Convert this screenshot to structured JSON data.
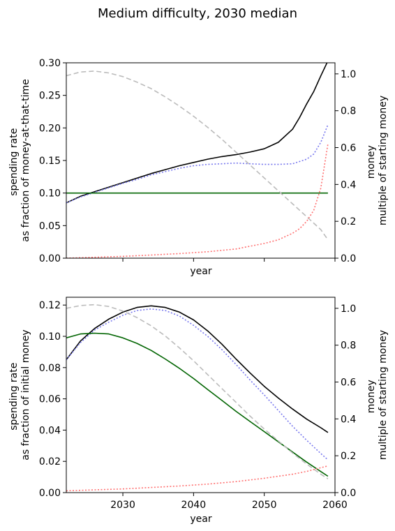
{
  "figure": {
    "suptitle": "Medium difficulty, 2030 median"
  },
  "chart_data": [
    {
      "type": "line",
      "panel": "top",
      "xlabel": "year",
      "ylabel": "spending rate\nas fraction of money-at-that-time",
      "y2label": "money\nmultiple of starting money",
      "xlim": [
        2022,
        2060
      ],
      "ylim": [
        0,
        0.3
      ],
      "y2lim": [
        0,
        1.06
      ],
      "x_ticks": [
        2030,
        2040,
        2050,
        2060
      ],
      "x_tick_labels_visible": false,
      "y_ticks": [
        "0.00",
        "0.05",
        "0.10",
        "0.15",
        "0.20",
        "0.25",
        "0.30"
      ],
      "y2_ticks": [
        "0.0",
        "0.2",
        "0.4",
        "0.6",
        "0.8",
        "1.0"
      ],
      "series": [
        {
          "axis": "left",
          "color": "#000000",
          "style": "solid",
          "width": 1.6,
          "x": [
            2022,
            2024,
            2026,
            2028,
            2030,
            2032,
            2034,
            2036,
            2038,
            2040,
            2042,
            2044,
            2046,
            2048,
            2050,
            2052,
            2054,
            2055,
            2056,
            2057,
            2058,
            2059
          ],
          "y": [
            0.085,
            0.095,
            0.102,
            0.109,
            0.116,
            0.123,
            0.13,
            0.136,
            0.142,
            0.147,
            0.152,
            0.156,
            0.159,
            0.163,
            0.168,
            0.178,
            0.198,
            0.216,
            0.237,
            0.256,
            0.28,
            0.303
          ]
        },
        {
          "axis": "left",
          "color": "#7777ee",
          "style": "dotted",
          "width": 1.6,
          "x": [
            2022,
            2024,
            2026,
            2028,
            2030,
            2032,
            2034,
            2036,
            2038,
            2040,
            2042,
            2044,
            2046,
            2048,
            2050,
            2052,
            2054,
            2056,
            2057,
            2058,
            2059
          ],
          "y": [
            0.085,
            0.094,
            0.101,
            0.108,
            0.115,
            0.121,
            0.128,
            0.133,
            0.138,
            0.142,
            0.144,
            0.145,
            0.146,
            0.145,
            0.144,
            0.144,
            0.145,
            0.152,
            0.16,
            0.178,
            0.205
          ]
        },
        {
          "axis": "left",
          "color": "#006400",
          "style": "solid",
          "width": 1.6,
          "x": [
            2022,
            2059
          ],
          "y": [
            0.1,
            0.1
          ]
        },
        {
          "axis": "right",
          "color": "#bbbbbb",
          "style": "dashed",
          "width": 1.6,
          "x": [
            2022,
            2024,
            2026,
            2028,
            2030,
            2032,
            2034,
            2036,
            2038,
            2040,
            2042,
            2044,
            2046,
            2048,
            2050,
            2052,
            2054,
            2056,
            2058,
            2059
          ],
          "y": [
            0.99,
            1.01,
            1.015,
            1.005,
            0.985,
            0.955,
            0.92,
            0.875,
            0.825,
            0.77,
            0.71,
            0.645,
            0.575,
            0.505,
            0.435,
            0.365,
            0.295,
            0.225,
            0.155,
            0.1
          ]
        },
        {
          "axis": "right",
          "color": "#ff7070",
          "style": "dotted",
          "width": 1.6,
          "x": [
            2022,
            2026,
            2030,
            2034,
            2038,
            2042,
            2046,
            2050,
            2052,
            2054,
            2055,
            2056,
            2057,
            2058,
            2059
          ],
          "y": [
            0.0,
            0.005,
            0.01,
            0.017,
            0.025,
            0.035,
            0.05,
            0.08,
            0.1,
            0.135,
            0.16,
            0.2,
            0.26,
            0.38,
            0.62
          ]
        }
      ]
    },
    {
      "type": "line",
      "panel": "bottom",
      "xlabel": "year",
      "ylabel": "spending rate\nas fraction of initial money",
      "y2label": "money\nmultiple of starting money",
      "xlim": [
        2022,
        2060
      ],
      "ylim": [
        0,
        0.125
      ],
      "y2lim": [
        0,
        1.06
      ],
      "x_ticks": [
        2030,
        2040,
        2050,
        2060
      ],
      "x_tick_labels": [
        "2030",
        "2040",
        "2050",
        "2060"
      ],
      "y_ticks": [
        "0.00",
        "0.02",
        "0.04",
        "0.06",
        "0.08",
        "0.10",
        "0.12"
      ],
      "y2_ticks": [
        "0.0",
        "0.2",
        "0.4",
        "0.6",
        "0.8",
        "1.0"
      ],
      "series": [
        {
          "axis": "left",
          "color": "#000000",
          "style": "solid",
          "width": 1.6,
          "x": [
            2022,
            2024,
            2026,
            2028,
            2030,
            2032,
            2034,
            2036,
            2038,
            2040,
            2042,
            2044,
            2046,
            2048,
            2050,
            2052,
            2054,
            2056,
            2058,
            2059
          ],
          "y": [
            0.085,
            0.097,
            0.105,
            0.111,
            0.1155,
            0.1185,
            0.1195,
            0.1185,
            0.1155,
            0.1105,
            0.1035,
            0.095,
            0.0855,
            0.0765,
            0.068,
            0.0605,
            0.0535,
            0.047,
            0.0415,
            0.0385
          ]
        },
        {
          "axis": "left",
          "color": "#7777ee",
          "style": "dotted",
          "width": 1.6,
          "x": [
            2022,
            2024,
            2026,
            2028,
            2030,
            2032,
            2034,
            2036,
            2038,
            2040,
            2042,
            2044,
            2046,
            2048,
            2050,
            2052,
            2054,
            2056,
            2058,
            2059
          ],
          "y": [
            0.085,
            0.096,
            0.104,
            0.109,
            0.1135,
            0.1165,
            0.1175,
            0.1165,
            0.113,
            0.107,
            0.1,
            0.0915,
            0.082,
            0.072,
            0.0625,
            0.0525,
            0.0425,
            0.0335,
            0.025,
            0.021
          ]
        },
        {
          "axis": "left",
          "color": "#006400",
          "style": "solid",
          "width": 1.6,
          "x": [
            2022,
            2024,
            2026,
            2028,
            2030,
            2032,
            2034,
            2036,
            2038,
            2040,
            2042,
            2044,
            2046,
            2048,
            2050,
            2052,
            2054,
            2056,
            2058,
            2059
          ],
          "y": [
            0.099,
            0.1015,
            0.102,
            0.1015,
            0.099,
            0.0955,
            0.091,
            0.0855,
            0.0795,
            0.073,
            0.066,
            0.059,
            0.052,
            0.0455,
            0.039,
            0.0325,
            0.026,
            0.0195,
            0.0135,
            0.0105
          ]
        },
        {
          "axis": "right",
          "color": "#bbbbbb",
          "style": "dashed",
          "width": 1.6,
          "x": [
            2022,
            2024,
            2026,
            2028,
            2030,
            2032,
            2034,
            2036,
            2038,
            2040,
            2042,
            2044,
            2046,
            2048,
            2050,
            2052,
            2054,
            2056,
            2058,
            2059
          ],
          "y": [
            1.0,
            1.015,
            1.02,
            1.01,
            0.985,
            0.95,
            0.905,
            0.85,
            0.785,
            0.715,
            0.64,
            0.565,
            0.49,
            0.415,
            0.345,
            0.28,
            0.215,
            0.155,
            0.1,
            0.075
          ]
        },
        {
          "axis": "right",
          "color": "#ff7070",
          "style": "dotted",
          "width": 1.6,
          "x": [
            2022,
            2026,
            2030,
            2034,
            2038,
            2042,
            2046,
            2050,
            2054,
            2056,
            2058,
            2059
          ],
          "y": [
            0.01,
            0.015,
            0.02,
            0.028,
            0.036,
            0.046,
            0.06,
            0.078,
            0.1,
            0.115,
            0.135,
            0.145
          ]
        }
      ]
    }
  ]
}
